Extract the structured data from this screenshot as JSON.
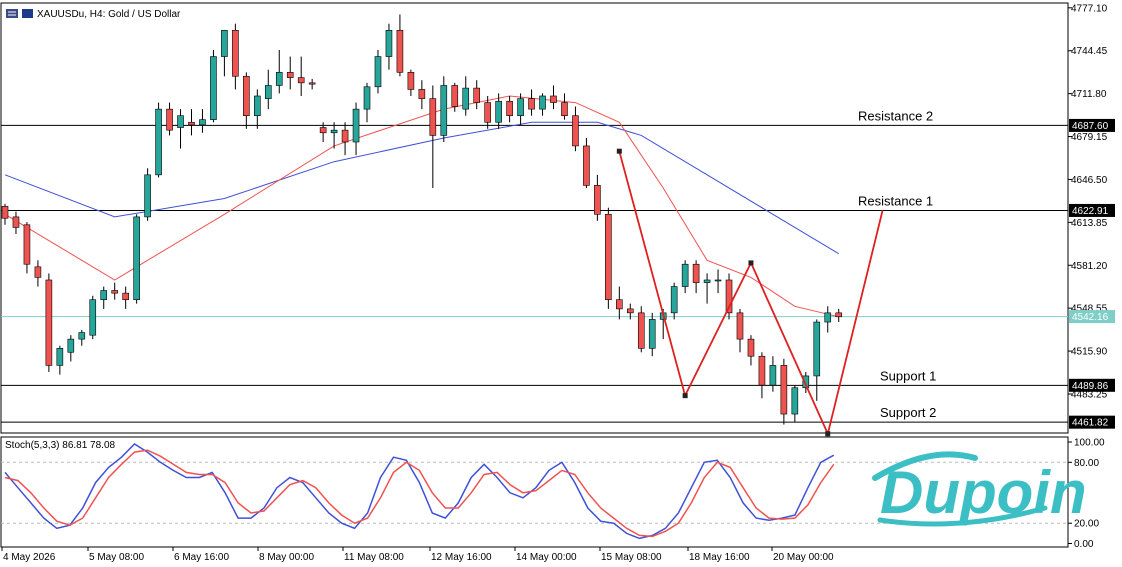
{
  "header": {
    "symbol_label": "XAUUSDu, H4:  Gold / US Dollar",
    "logo_text": "Dupoin"
  },
  "colors": {
    "bull": "#26a69a",
    "bear": "#ef5350",
    "ma_fast": "#ef5350",
    "ma_slow": "#3f51d8",
    "zigzag": "#e02020",
    "current_price_line": "#7fcfc8",
    "logo": "#3bbfc4"
  },
  "chart_data": [
    {
      "type": "candlestick",
      "title": "XAUUSDu, H4:  Gold / US Dollar",
      "ylim": [
        4450,
        4780
      ],
      "y_ticks": [
        "4777.10",
        "4744.45",
        "4711.80",
        "4679.15",
        "4646.50",
        "4613.85",
        "4581.20",
        "4548.55",
        "4515.90",
        "4483.25"
      ],
      "x_ticks": [
        "4 May 2026",
        "5 May 08:00",
        "6 May 16:00",
        "8 May 00:00",
        "11 May 08:00",
        "12 May 16:00",
        "14 May 00:00",
        "15 May 08:00",
        "18 May 16:00",
        "20 May 00:00"
      ],
      "horizontal_levels": [
        {
          "label": "Resistance 2",
          "price_tag": "4687.60",
          "value": 4687.6
        },
        {
          "label": "Resistance 1",
          "price_tag": "4622.91",
          "value": 4622.91
        },
        {
          "label": "Support 1",
          "price_tag": "4489.86",
          "value": 4489.86
        },
        {
          "label": "Support 2",
          "price_tag": "4461.82",
          "value": 4461.82
        }
      ],
      "current_price": {
        "price_tag": "4542.16",
        "value": 4542.16
      },
      "candles": [
        [
          4626,
          4628,
          4612,
          4617
        ],
        [
          4618,
          4622,
          4605,
          4610
        ],
        [
          4612,
          4614,
          4575,
          4582
        ],
        [
          4580,
          4585,
          4565,
          4572
        ],
        [
          4570,
          4575,
          4500,
          4505
        ],
        [
          4505,
          4520,
          4498,
          4518
        ],
        [
          4515,
          4528,
          4508,
          4525
        ],
        [
          4525,
          4532,
          4520,
          4530
        ],
        [
          4528,
          4558,
          4525,
          4555
        ],
        [
          4555,
          4565,
          4548,
          4562
        ],
        [
          4562,
          4568,
          4555,
          4560
        ],
        [
          4560,
          4565,
          4548,
          4555
        ],
        [
          4555,
          4620,
          4552,
          4618
        ],
        [
          4618,
          4655,
          4615,
          4650
        ],
        [
          4650,
          4705,
          4648,
          4700
        ],
        [
          4700,
          4705,
          4680,
          4684
        ],
        [
          4686,
          4700,
          4670,
          4695
        ],
        [
          4690,
          4700,
          4680,
          4688
        ],
        [
          4688,
          4700,
          4682,
          4692
        ],
        [
          4692,
          4745,
          4690,
          4740
        ],
        [
          4740,
          4760,
          4725,
          4760
        ],
        [
          4760,
          4765,
          4715,
          4725
        ],
        [
          4725,
          4728,
          4685,
          4695
        ],
        [
          4695,
          4715,
          4685,
          4710
        ],
        [
          4708,
          4730,
          4700,
          4718
        ],
        [
          4718,
          4745,
          4712,
          4728
        ],
        [
          4728,
          4740,
          4715,
          4724
        ],
        [
          4724,
          4740,
          4710,
          4720
        ],
        [
          4720,
          4723,
          4715,
          4719
        ],
        [
          4686,
          4690,
          4675,
          4682
        ],
        [
          4682,
          4690,
          4670,
          4684
        ],
        [
          4684,
          4690,
          4665,
          4675
        ],
        [
          4675,
          4705,
          4665,
          4700
        ],
        [
          4700,
          4720,
          4690,
          4717
        ],
        [
          4717,
          4745,
          4712,
          4740
        ],
        [
          4740,
          4765,
          4730,
          4760
        ],
        [
          4760,
          4772,
          4725,
          4728
        ],
        [
          4728,
          4730,
          4710,
          4715
        ],
        [
          4715,
          4722,
          4700,
          4708
        ],
        [
          4708,
          4718,
          4640,
          4680
        ],
        [
          4680,
          4725,
          4675,
          4718
        ],
        [
          4718,
          4720,
          4698,
          4702
        ],
        [
          4700,
          4725,
          4695,
          4716
        ],
        [
          4716,
          4722,
          4700,
          4705
        ],
        [
          4705,
          4710,
          4685,
          4690
        ],
        [
          4690,
          4712,
          4685,
          4706
        ],
        [
          4706,
          4710,
          4690,
          4695
        ],
        [
          4695,
          4712,
          4688,
          4708
        ],
        [
          4708,
          4715,
          4695,
          4700
        ],
        [
          4700,
          4712,
          4695,
          4710
        ],
        [
          4710,
          4718,
          4700,
          4705
        ],
        [
          4705,
          4712,
          4692,
          4695
        ],
        [
          4695,
          4702,
          4668,
          4672
        ],
        [
          4672,
          4678,
          4640,
          4642
        ],
        [
          4642,
          4650,
          4615,
          4620
        ],
        [
          4620,
          4625,
          4548,
          4555
        ],
        [
          4555,
          4565,
          4540,
          4548
        ],
        [
          4548,
          4552,
          4540,
          4545
        ],
        [
          4545,
          4550,
          4515,
          4518
        ],
        [
          4518,
          4545,
          4512,
          4540
        ],
        [
          4540,
          4548,
          4525,
          4545
        ],
        [
          4545,
          4568,
          4540,
          4565
        ],
        [
          4565,
          4585,
          4560,
          4582
        ],
        [
          4582,
          4585,
          4560,
          4568
        ],
        [
          4568,
          4575,
          4552,
          4570
        ],
        [
          4570,
          4578,
          4560,
          4570
        ],
        [
          4570,
          4575,
          4540,
          4545
        ],
        [
          4545,
          4548,
          4515,
          4525
        ],
        [
          4525,
          4528,
          4505,
          4512
        ],
        [
          4512,
          4515,
          4480,
          4490
        ],
        [
          4490,
          4512,
          4485,
          4505
        ],
        [
          4505,
          4510,
          4460,
          4468
        ],
        [
          4468,
          4490,
          4462,
          4488
        ],
        [
          4488,
          4500,
          4484,
          4497
        ],
        [
          4497,
          4540,
          4478,
          4538
        ],
        [
          4538,
          4550,
          4530,
          4545
        ],
        [
          4545,
          4548,
          4538,
          4542
        ]
      ],
      "ma_fast": [
        [
          0,
          4620
        ],
        [
          10,
          4570
        ],
        [
          20,
          4620
        ],
        [
          30,
          4672
        ],
        [
          40,
          4700
        ],
        [
          46,
          4710
        ],
        [
          52,
          4705
        ],
        [
          56,
          4690
        ],
        [
          60,
          4640
        ],
        [
          64,
          4585
        ],
        [
          68,
          4572
        ],
        [
          72,
          4550
        ],
        [
          76,
          4542
        ]
      ],
      "ma_slow": [
        [
          0,
          4650
        ],
        [
          10,
          4618
        ],
        [
          20,
          4632
        ],
        [
          30,
          4660
        ],
        [
          40,
          4678
        ],
        [
          48,
          4690
        ],
        [
          54,
          4690
        ],
        [
          58,
          4680
        ],
        [
          64,
          4650
        ],
        [
          70,
          4620
        ],
        [
          76,
          4590
        ]
      ],
      "zigzag": [
        [
          56,
          4668
        ],
        [
          62,
          4482
        ],
        [
          68,
          4583
        ],
        [
          75,
          4453
        ],
        [
          80,
          4623
        ]
      ]
    },
    {
      "type": "line",
      "title": "Stoch(5,3,3) 86.81 78.08",
      "ylim": [
        0,
        100
      ],
      "y_ticks": [
        "100.00",
        "80.00",
        "20.00",
        "0.00"
      ],
      "series": [
        {
          "values": [
            70,
            55,
            40,
            25,
            15,
            18,
            35,
            60,
            75,
            85,
            98,
            90,
            80,
            72,
            65,
            65,
            70,
            50,
            25,
            25,
            35,
            55,
            65,
            60,
            45,
            30,
            20,
            15,
            30,
            65,
            85,
            82,
            60,
            30,
            25,
            40,
            65,
            78,
            65,
            50,
            45,
            55,
            72,
            80,
            60,
            35,
            22,
            20,
            10,
            5,
            8,
            15,
            30,
            55,
            80,
            82,
            65,
            40,
            25,
            23,
            25,
            28,
            55,
            80,
            87
          ]
        },
        {
          "values": [
            65,
            62,
            50,
            35,
            22,
            18,
            25,
            45,
            65,
            78,
            90,
            92,
            86,
            78,
            70,
            68,
            68,
            60,
            40,
            30,
            32,
            45,
            58,
            62,
            55,
            40,
            28,
            20,
            25,
            45,
            70,
            80,
            72,
            50,
            35,
            35,
            50,
            68,
            70,
            58,
            50,
            52,
            62,
            72,
            68,
            50,
            35,
            25,
            15,
            8,
            7,
            12,
            20,
            40,
            65,
            80,
            75,
            55,
            35,
            25,
            24,
            25,
            38,
            60,
            78
          ]
        }
      ]
    }
  ]
}
